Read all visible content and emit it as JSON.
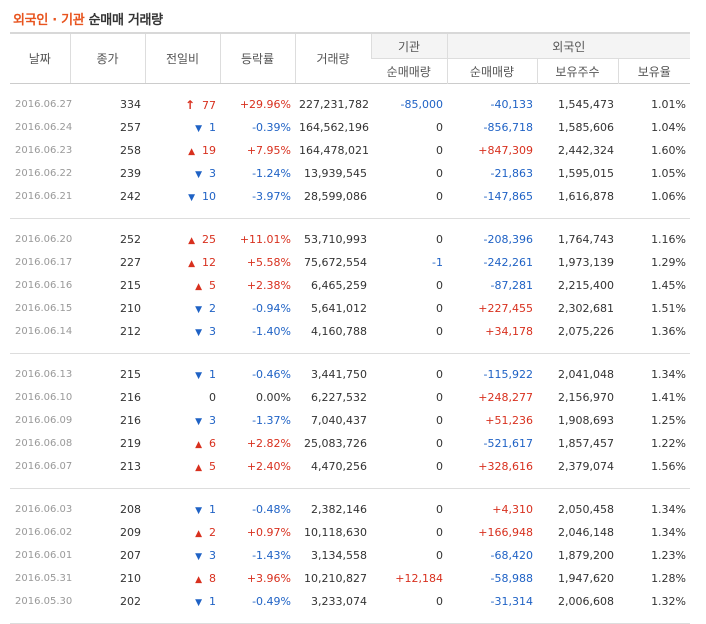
{
  "title": {
    "highlight": "외국인 · 기관",
    "rest": "순매매 거래량"
  },
  "headers": {
    "date": "날짜",
    "close": "종가",
    "change": "전일비",
    "rate": "등락률",
    "volume": "거래량",
    "inst_group": "기관",
    "foreign_group": "외국인",
    "inst_net": "순매매량",
    "foreign_net": "순매매량",
    "foreign_hold": "보유주수",
    "foreign_ratio": "보유율"
  },
  "colors": {
    "up": "#d8301e",
    "down": "#1f62c5",
    "accent": "#e8541e"
  },
  "groups": [
    [
      {
        "date": "2016.06.27",
        "close": "334",
        "dir": "upper",
        "change": "77",
        "rate": "+29.96%",
        "volume": "227,231,782",
        "inst": "-85,000",
        "inst_dir": "dn",
        "foreign": "-40,133",
        "foreign_dir": "dn",
        "hold": "1,545,473",
        "ratio": "1.01%"
      },
      {
        "date": "2016.06.24",
        "close": "257",
        "dir": "down",
        "change": "1",
        "rate": "-0.39%",
        "volume": "164,562,196",
        "inst": "0",
        "inst_dir": "zero",
        "foreign": "-856,718",
        "foreign_dir": "dn",
        "hold": "1,585,606",
        "ratio": "1.04%"
      },
      {
        "date": "2016.06.23",
        "close": "258",
        "dir": "up",
        "change": "19",
        "rate": "+7.95%",
        "volume": "164,478,021",
        "inst": "0",
        "inst_dir": "zero",
        "foreign": "+847,309",
        "foreign_dir": "up",
        "hold": "2,442,324",
        "ratio": "1.60%"
      },
      {
        "date": "2016.06.22",
        "close": "239",
        "dir": "down",
        "change": "3",
        "rate": "-1.24%",
        "volume": "13,939,545",
        "inst": "0",
        "inst_dir": "zero",
        "foreign": "-21,863",
        "foreign_dir": "dn",
        "hold": "1,595,015",
        "ratio": "1.05%"
      },
      {
        "date": "2016.06.21",
        "close": "242",
        "dir": "down",
        "change": "10",
        "rate": "-3.97%",
        "volume": "28,599,086",
        "inst": "0",
        "inst_dir": "zero",
        "foreign": "-147,865",
        "foreign_dir": "dn",
        "hold": "1,616,878",
        "ratio": "1.06%"
      }
    ],
    [
      {
        "date": "2016.06.20",
        "close": "252",
        "dir": "up",
        "change": "25",
        "rate": "+11.01%",
        "volume": "53,710,993",
        "inst": "0",
        "inst_dir": "zero",
        "foreign": "-208,396",
        "foreign_dir": "dn",
        "hold": "1,764,743",
        "ratio": "1.16%"
      },
      {
        "date": "2016.06.17",
        "close": "227",
        "dir": "up",
        "change": "12",
        "rate": "+5.58%",
        "volume": "75,672,554",
        "inst": "-1",
        "inst_dir": "dn",
        "foreign": "-242,261",
        "foreign_dir": "dn",
        "hold": "1,973,139",
        "ratio": "1.29%"
      },
      {
        "date": "2016.06.16",
        "close": "215",
        "dir": "up",
        "change": "5",
        "rate": "+2.38%",
        "volume": "6,465,259",
        "inst": "0",
        "inst_dir": "zero",
        "foreign": "-87,281",
        "foreign_dir": "dn",
        "hold": "2,215,400",
        "ratio": "1.45%"
      },
      {
        "date": "2016.06.15",
        "close": "210",
        "dir": "down",
        "change": "2",
        "rate": "-0.94%",
        "volume": "5,641,012",
        "inst": "0",
        "inst_dir": "zero",
        "foreign": "+227,455",
        "foreign_dir": "up",
        "hold": "2,302,681",
        "ratio": "1.51%"
      },
      {
        "date": "2016.06.14",
        "close": "212",
        "dir": "down",
        "change": "3",
        "rate": "-1.40%",
        "volume": "4,160,788",
        "inst": "0",
        "inst_dir": "zero",
        "foreign": "+34,178",
        "foreign_dir": "up",
        "hold": "2,075,226",
        "ratio": "1.36%"
      }
    ],
    [
      {
        "date": "2016.06.13",
        "close": "215",
        "dir": "down",
        "change": "1",
        "rate": "-0.46%",
        "volume": "3,441,750",
        "inst": "0",
        "inst_dir": "zero",
        "foreign": "-115,922",
        "foreign_dir": "dn",
        "hold": "2,041,048",
        "ratio": "1.34%"
      },
      {
        "date": "2016.06.10",
        "close": "216",
        "dir": "none",
        "change": "0",
        "rate": "0.00%",
        "volume": "6,227,532",
        "inst": "0",
        "inst_dir": "zero",
        "foreign": "+248,277",
        "foreign_dir": "up",
        "hold": "2,156,970",
        "ratio": "1.41%"
      },
      {
        "date": "2016.06.09",
        "close": "216",
        "dir": "down",
        "change": "3",
        "rate": "-1.37%",
        "volume": "7,040,437",
        "inst": "0",
        "inst_dir": "zero",
        "foreign": "+51,236",
        "foreign_dir": "up",
        "hold": "1,908,693",
        "ratio": "1.25%"
      },
      {
        "date": "2016.06.08",
        "close": "219",
        "dir": "up",
        "change": "6",
        "rate": "+2.82%",
        "volume": "25,083,726",
        "inst": "0",
        "inst_dir": "zero",
        "foreign": "-521,617",
        "foreign_dir": "dn",
        "hold": "1,857,457",
        "ratio": "1.22%"
      },
      {
        "date": "2016.06.07",
        "close": "213",
        "dir": "up",
        "change": "5",
        "rate": "+2.40%",
        "volume": "4,470,256",
        "inst": "0",
        "inst_dir": "zero",
        "foreign": "+328,616",
        "foreign_dir": "up",
        "hold": "2,379,074",
        "ratio": "1.56%"
      }
    ],
    [
      {
        "date": "2016.06.03",
        "close": "208",
        "dir": "down",
        "change": "1",
        "rate": "-0.48%",
        "volume": "2,382,146",
        "inst": "0",
        "inst_dir": "zero",
        "foreign": "+4,310",
        "foreign_dir": "up",
        "hold": "2,050,458",
        "ratio": "1.34%"
      },
      {
        "date": "2016.06.02",
        "close": "209",
        "dir": "up",
        "change": "2",
        "rate": "+0.97%",
        "volume": "10,118,630",
        "inst": "0",
        "inst_dir": "zero",
        "foreign": "+166,948",
        "foreign_dir": "up",
        "hold": "2,046,148",
        "ratio": "1.34%"
      },
      {
        "date": "2016.06.01",
        "close": "207",
        "dir": "down",
        "change": "3",
        "rate": "-1.43%",
        "volume": "3,134,558",
        "inst": "0",
        "inst_dir": "zero",
        "foreign": "-68,420",
        "foreign_dir": "dn",
        "hold": "1,879,200",
        "ratio": "1.23%"
      },
      {
        "date": "2016.05.31",
        "close": "210",
        "dir": "up",
        "change": "8",
        "rate": "+3.96%",
        "volume": "10,210,827",
        "inst": "+12,184",
        "inst_dir": "up",
        "foreign": "-58,988",
        "foreign_dir": "dn",
        "hold": "1,947,620",
        "ratio": "1.28%"
      },
      {
        "date": "2016.05.30",
        "close": "202",
        "dir": "down",
        "change": "1",
        "rate": "-0.49%",
        "volume": "3,233,074",
        "inst": "0",
        "inst_dir": "zero",
        "foreign": "-31,314",
        "foreign_dir": "dn",
        "hold": "2,006,608",
        "ratio": "1.32%"
      }
    ]
  ]
}
